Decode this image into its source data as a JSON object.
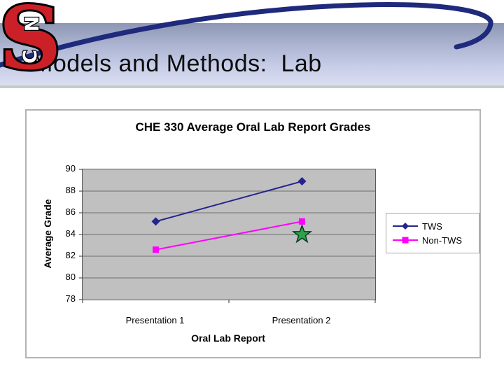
{
  "header": {
    "title": "Models and Methods:  Lab",
    "logo": {
      "name": "nc-state-block-s-logo",
      "s": "S",
      "n": "N",
      "c": "C",
      "red": "#cc2029",
      "outline": "#000000"
    },
    "swoosh_color": "#1f2a7d"
  },
  "colors": {
    "band_top": "#8d97b4",
    "band_bottom": "#dadef1",
    "band_edge": "#c2cfc4",
    "panel_border": "#b4b4b4",
    "plot_bg": "#c0c0c0",
    "plot_border": "#595959",
    "grid": "#6e6e6e",
    "tick": "#333333"
  },
  "chart_data": {
    "type": "line",
    "title": "CHE 330 Average Oral Lab Report Grades",
    "xlabel": "Oral Lab Report",
    "ylabel": "Average Grade",
    "categories": [
      "Presentation 1",
      "Presentation 2"
    ],
    "series": [
      {
        "name": "TWS",
        "values": [
          85.2,
          88.9
        ],
        "color": "#24248f",
        "marker": "diamond"
      },
      {
        "name": "Non-TWS",
        "values": [
          82.6,
          85.2
        ],
        "color": "#ff00ff",
        "marker": "square"
      }
    ],
    "ylim": [
      78,
      90
    ],
    "yticks": [
      78,
      80,
      82,
      84,
      86,
      88,
      90
    ],
    "grid": true,
    "legend_position": "right",
    "annotation": {
      "type": "star",
      "category_index": 1,
      "value": 84,
      "color": "#2fa24d",
      "outline": "#073d1c"
    }
  }
}
